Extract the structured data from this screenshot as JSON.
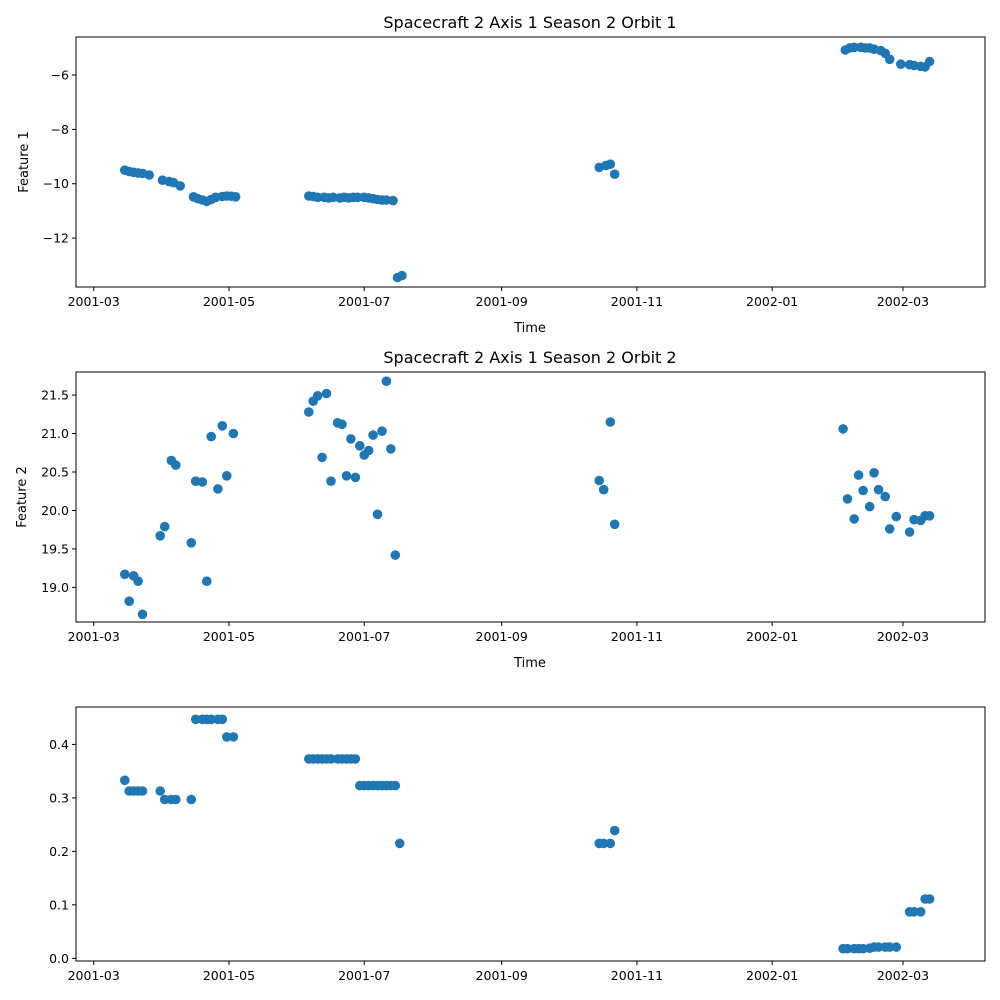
{
  "chart_data": [
    {
      "type": "scatter",
      "title": "Spacecraft 2 Axis 1 Season 2 Orbit 1",
      "xlabel": "Time",
      "ylabel": "Feature 1",
      "xlim": [
        "2001-02-21",
        "2002-04-07"
      ],
      "ylim": [
        -13.8,
        -4.6
      ],
      "xticks": [
        "2001-03-01",
        "2001-05-01",
        "2001-07-01",
        "2001-09-01",
        "2001-11-01",
        "2002-01-01",
        "2002-03-01"
      ],
      "xtick_labels": [
        "2001-03",
        "2001-05",
        "2001-07",
        "2001-09",
        "2001-11",
        "2002-01",
        "2002-03"
      ],
      "yticks": [
        -12,
        -10,
        -8,
        -6
      ],
      "ytick_labels": [
        "−12",
        "−10",
        "−8",
        "−6"
      ],
      "color": "#1f77b4",
      "series": [
        {
          "x": [
            "2001-03-15",
            "2001-03-17",
            "2001-03-19",
            "2001-03-21",
            "2001-03-23",
            "2001-03-26",
            "2001-04-01",
            "2001-04-04",
            "2001-04-06",
            "2001-04-09",
            "2001-04-15",
            "2001-04-17",
            "2001-04-19",
            "2001-04-21",
            "2001-04-23",
            "2001-04-25",
            "2001-04-28",
            "2001-04-30",
            "2001-05-02",
            "2001-05-04",
            "2001-06-06",
            "2001-06-08",
            "2001-06-10",
            "2001-06-13",
            "2001-06-15",
            "2001-06-17",
            "2001-06-20",
            "2001-06-22",
            "2001-06-24",
            "2001-06-26",
            "2001-06-28",
            "2001-07-01",
            "2001-07-03",
            "2001-07-05",
            "2001-07-07",
            "2001-07-09",
            "2001-07-11",
            "2001-07-14",
            "2001-07-16",
            "2001-07-18",
            "2001-10-15",
            "2001-10-18",
            "2001-10-20",
            "2001-10-22",
            "2002-02-03",
            "2002-02-05",
            "2002-02-07",
            "2002-02-10",
            "2002-02-12",
            "2002-02-14",
            "2002-02-16",
            "2002-02-19",
            "2002-02-21",
            "2002-02-23",
            "2002-02-28",
            "2002-03-04",
            "2002-03-06",
            "2002-03-09",
            "2002-03-11",
            "2002-03-13"
          ],
          "y": [
            -9.5,
            -9.55,
            -9.58,
            -9.6,
            -9.62,
            -9.68,
            -9.87,
            -9.92,
            -9.96,
            -10.08,
            -10.48,
            -10.55,
            -10.6,
            -10.65,
            -10.58,
            -10.5,
            -10.47,
            -10.45,
            -10.46,
            -10.48,
            -10.45,
            -10.47,
            -10.5,
            -10.5,
            -10.52,
            -10.5,
            -10.52,
            -10.5,
            -10.52,
            -10.5,
            -10.5,
            -10.5,
            -10.52,
            -10.55,
            -10.58,
            -10.6,
            -10.6,
            -10.62,
            -13.45,
            -13.38,
            -9.4,
            -9.33,
            -9.28,
            -9.65,
            -5.08,
            -5.0,
            -4.98,
            -4.98,
            -5.0,
            -5.0,
            -5.05,
            -5.1,
            -5.2,
            -5.42,
            -5.6,
            -5.62,
            -5.65,
            -5.68,
            -5.7,
            -5.5
          ]
        }
      ]
    },
    {
      "type": "scatter",
      "title": "Spacecraft 2 Axis 1 Season 2 Orbit 2",
      "xlabel": "Time",
      "ylabel": "Feature 2",
      "xlim": [
        "2001-02-21",
        "2002-04-07"
      ],
      "ylim": [
        18.55,
        21.8
      ],
      "xticks": [
        "2001-03-01",
        "2001-05-01",
        "2001-07-01",
        "2001-09-01",
        "2001-11-01",
        "2002-01-01",
        "2002-03-01"
      ],
      "xtick_labels": [
        "2001-03",
        "2001-05",
        "2001-07",
        "2001-09",
        "2001-11",
        "2002-01",
        "2002-03"
      ],
      "yticks": [
        19.0,
        19.5,
        20.0,
        20.5,
        21.0,
        21.5
      ],
      "ytick_labels": [
        "19.0",
        "19.5",
        "20.0",
        "20.5",
        "21.0",
        "21.5"
      ],
      "color": "#1f77b4",
      "series": [
        {
          "x": [
            "2001-03-15",
            "2001-03-17",
            "2001-03-19",
            "2001-03-21",
            "2001-03-23",
            "2001-03-31",
            "2001-04-02",
            "2001-04-05",
            "2001-04-07",
            "2001-04-14",
            "2001-04-16",
            "2001-04-19",
            "2001-04-21",
            "2001-04-23",
            "2001-04-26",
            "2001-04-28",
            "2001-04-30",
            "2001-05-03",
            "2001-06-06",
            "2001-06-08",
            "2001-06-10",
            "2001-06-12",
            "2001-06-14",
            "2001-06-16",
            "2001-06-19",
            "2001-06-21",
            "2001-06-23",
            "2001-06-25",
            "2001-06-27",
            "2001-06-29",
            "2001-07-01",
            "2001-07-03",
            "2001-07-05",
            "2001-07-07",
            "2001-07-09",
            "2001-07-11",
            "2001-07-13",
            "2001-07-15",
            "2001-10-15",
            "2001-10-17",
            "2001-10-20",
            "2001-10-22",
            "2002-02-02",
            "2002-02-04",
            "2002-02-07",
            "2002-02-09",
            "2002-02-11",
            "2002-02-14",
            "2002-02-16",
            "2002-02-18",
            "2002-02-21",
            "2002-02-23",
            "2002-02-26",
            "2002-03-04",
            "2002-03-06",
            "2002-03-09",
            "2002-03-11",
            "2002-03-13"
          ],
          "y": [
            19.17,
            18.82,
            19.15,
            19.08,
            18.65,
            19.67,
            19.79,
            20.65,
            20.59,
            19.58,
            20.38,
            20.37,
            19.08,
            20.96,
            20.28,
            21.1,
            20.45,
            21.0,
            21.28,
            21.42,
            21.49,
            20.69,
            21.52,
            20.38,
            21.14,
            21.12,
            20.45,
            20.93,
            20.43,
            20.84,
            20.72,
            20.78,
            20.98,
            19.95,
            21.03,
            21.68,
            20.8,
            19.42,
            20.39,
            20.27,
            21.15,
            19.82,
            21.06,
            20.15,
            19.89,
            20.46,
            20.26,
            20.05,
            20.49,
            20.27,
            20.18,
            19.76,
            19.92,
            19.72,
            19.88,
            19.87,
            19.93,
            19.93
          ]
        }
      ]
    },
    {
      "type": "scatter",
      "title": "",
      "xlabel": "",
      "ylabel": "",
      "xlim": [
        "2001-02-21",
        "2002-04-07"
      ],
      "ylim": [
        -0.005,
        0.47
      ],
      "xticks": [
        "2001-03-01",
        "2001-05-01",
        "2001-07-01",
        "2001-09-01",
        "2001-11-01",
        "2002-01-01",
        "2002-03-01"
      ],
      "xtick_labels": [
        "2001-03",
        "2001-05",
        "2001-07",
        "2001-09",
        "2001-11",
        "2002-01",
        "2002-03"
      ],
      "yticks": [
        0.0,
        0.1,
        0.2,
        0.3,
        0.4
      ],
      "ytick_labels": [
        "0.0",
        "0.1",
        "0.2",
        "0.3",
        "0.4"
      ],
      "color": "#1f77b4",
      "series": [
        {
          "x": [
            "2001-03-15",
            "2001-03-17",
            "2001-03-19",
            "2001-03-21",
            "2001-03-23",
            "2001-03-31",
            "2001-04-02",
            "2001-04-05",
            "2001-04-07",
            "2001-04-14",
            "2001-04-16",
            "2001-04-19",
            "2001-04-21",
            "2001-04-23",
            "2001-04-26",
            "2001-04-28",
            "2001-04-30",
            "2001-05-03",
            "2001-06-06",
            "2001-06-08",
            "2001-06-10",
            "2001-06-12",
            "2001-06-14",
            "2001-06-16",
            "2001-06-19",
            "2001-06-21",
            "2001-06-23",
            "2001-06-25",
            "2001-06-27",
            "2001-06-29",
            "2001-07-01",
            "2001-07-03",
            "2001-07-05",
            "2001-07-07",
            "2001-07-09",
            "2001-07-11",
            "2001-07-13",
            "2001-07-15",
            "2001-07-17",
            "2001-10-15",
            "2001-10-17",
            "2001-10-20",
            "2001-10-22",
            "2002-02-02",
            "2002-02-04",
            "2002-02-07",
            "2002-02-09",
            "2002-02-11",
            "2002-02-14",
            "2002-02-16",
            "2002-02-18",
            "2002-02-21",
            "2002-02-23",
            "2002-02-26",
            "2002-03-04",
            "2002-03-06",
            "2002-03-09",
            "2002-03-11",
            "2002-03-13"
          ],
          "y": [
            0.333,
            0.313,
            0.313,
            0.313,
            0.313,
            0.313,
            0.297,
            0.297,
            0.297,
            0.297,
            0.447,
            0.447,
            0.447,
            0.447,
            0.447,
            0.447,
            0.414,
            0.414,
            0.373,
            0.373,
            0.373,
            0.373,
            0.373,
            0.373,
            0.373,
            0.373,
            0.373,
            0.373,
            0.373,
            0.323,
            0.323,
            0.323,
            0.323,
            0.323,
            0.323,
            0.323,
            0.323,
            0.323,
            0.215,
            0.215,
            0.215,
            0.215,
            0.239,
            0.018,
            0.018,
            0.018,
            0.018,
            0.018,
            0.019,
            0.021,
            0.021,
            0.021,
            0.021,
            0.021,
            0.087,
            0.087,
            0.087,
            0.111,
            0.111
          ]
        }
      ]
    }
  ]
}
